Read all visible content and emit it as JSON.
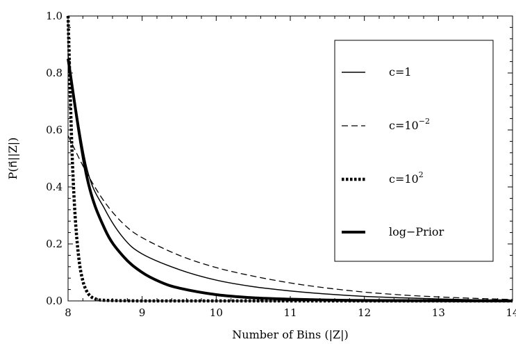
{
  "chart_data": {
    "type": "line",
    "title": "",
    "xlabel": "Number of Bins (|Z|)",
    "ylabel": "P(n⃗||Z|)",
    "xlim": [
      8,
      14
    ],
    "ylim": [
      0,
      1
    ],
    "xticks": [
      8,
      9,
      10,
      11,
      12,
      13,
      14
    ],
    "xtick_labels": [
      "8",
      "9",
      "10",
      "11",
      "12",
      "13",
      "14"
    ],
    "yticks": [
      0,
      0.2,
      0.4,
      0.6,
      0.8,
      1.0
    ],
    "ytick_labels": [
      "0.0",
      "0.2",
      "0.4",
      "0.6",
      "0.8",
      "1.0"
    ],
    "grid": false,
    "legend_position": "top-right",
    "series": [
      {
        "name": "c=1",
        "style": "solid-thin",
        "x": [
          8,
          8.25,
          8.5,
          8.75,
          9,
          9.5,
          10,
          10.5,
          11,
          11.5,
          12,
          12.5,
          13,
          13.5,
          14
        ],
        "y": [
          0.86,
          0.47,
          0.32,
          0.22,
          0.165,
          0.11,
          0.073,
          0.05,
          0.035,
          0.024,
          0.016,
          0.011,
          0.007,
          0.004,
          0.002
        ]
      },
      {
        "name": "c=10",
        "name_superscript": "−2",
        "style": "dashed",
        "x": [
          8,
          8.25,
          8.5,
          8.75,
          9,
          9.5,
          10,
          10.5,
          11,
          11.5,
          12,
          12.5,
          13,
          13.5,
          14
        ],
        "y": [
          0.58,
          0.45,
          0.345,
          0.27,
          0.222,
          0.16,
          0.117,
          0.087,
          0.063,
          0.045,
          0.031,
          0.021,
          0.014,
          0.009,
          0.005
        ]
      },
      {
        "name": "c=10",
        "name_superscript": "2",
        "style": "dotted-thick",
        "x": [
          8,
          8.03,
          8.06,
          8.1,
          8.15,
          8.2,
          8.25,
          8.3,
          8.35,
          8.4,
          8.5,
          9,
          10,
          11,
          12,
          13,
          14
        ],
        "y": [
          1.0,
          0.72,
          0.48,
          0.28,
          0.14,
          0.07,
          0.035,
          0.017,
          0.009,
          0.005,
          0.002,
          0,
          0,
          0,
          0,
          0,
          0
        ]
      },
      {
        "name": "log−Prior",
        "style": "solid-thick",
        "x": [
          8,
          8.25,
          8.5,
          8.75,
          9,
          9.25,
          9.5,
          10,
          10.5,
          11,
          11.5,
          12,
          13,
          14
        ],
        "y": [
          0.85,
          0.44,
          0.25,
          0.155,
          0.1,
          0.066,
          0.045,
          0.022,
          0.011,
          0.006,
          0.003,
          0.0015,
          0.0005,
          0
        ]
      }
    ]
  }
}
